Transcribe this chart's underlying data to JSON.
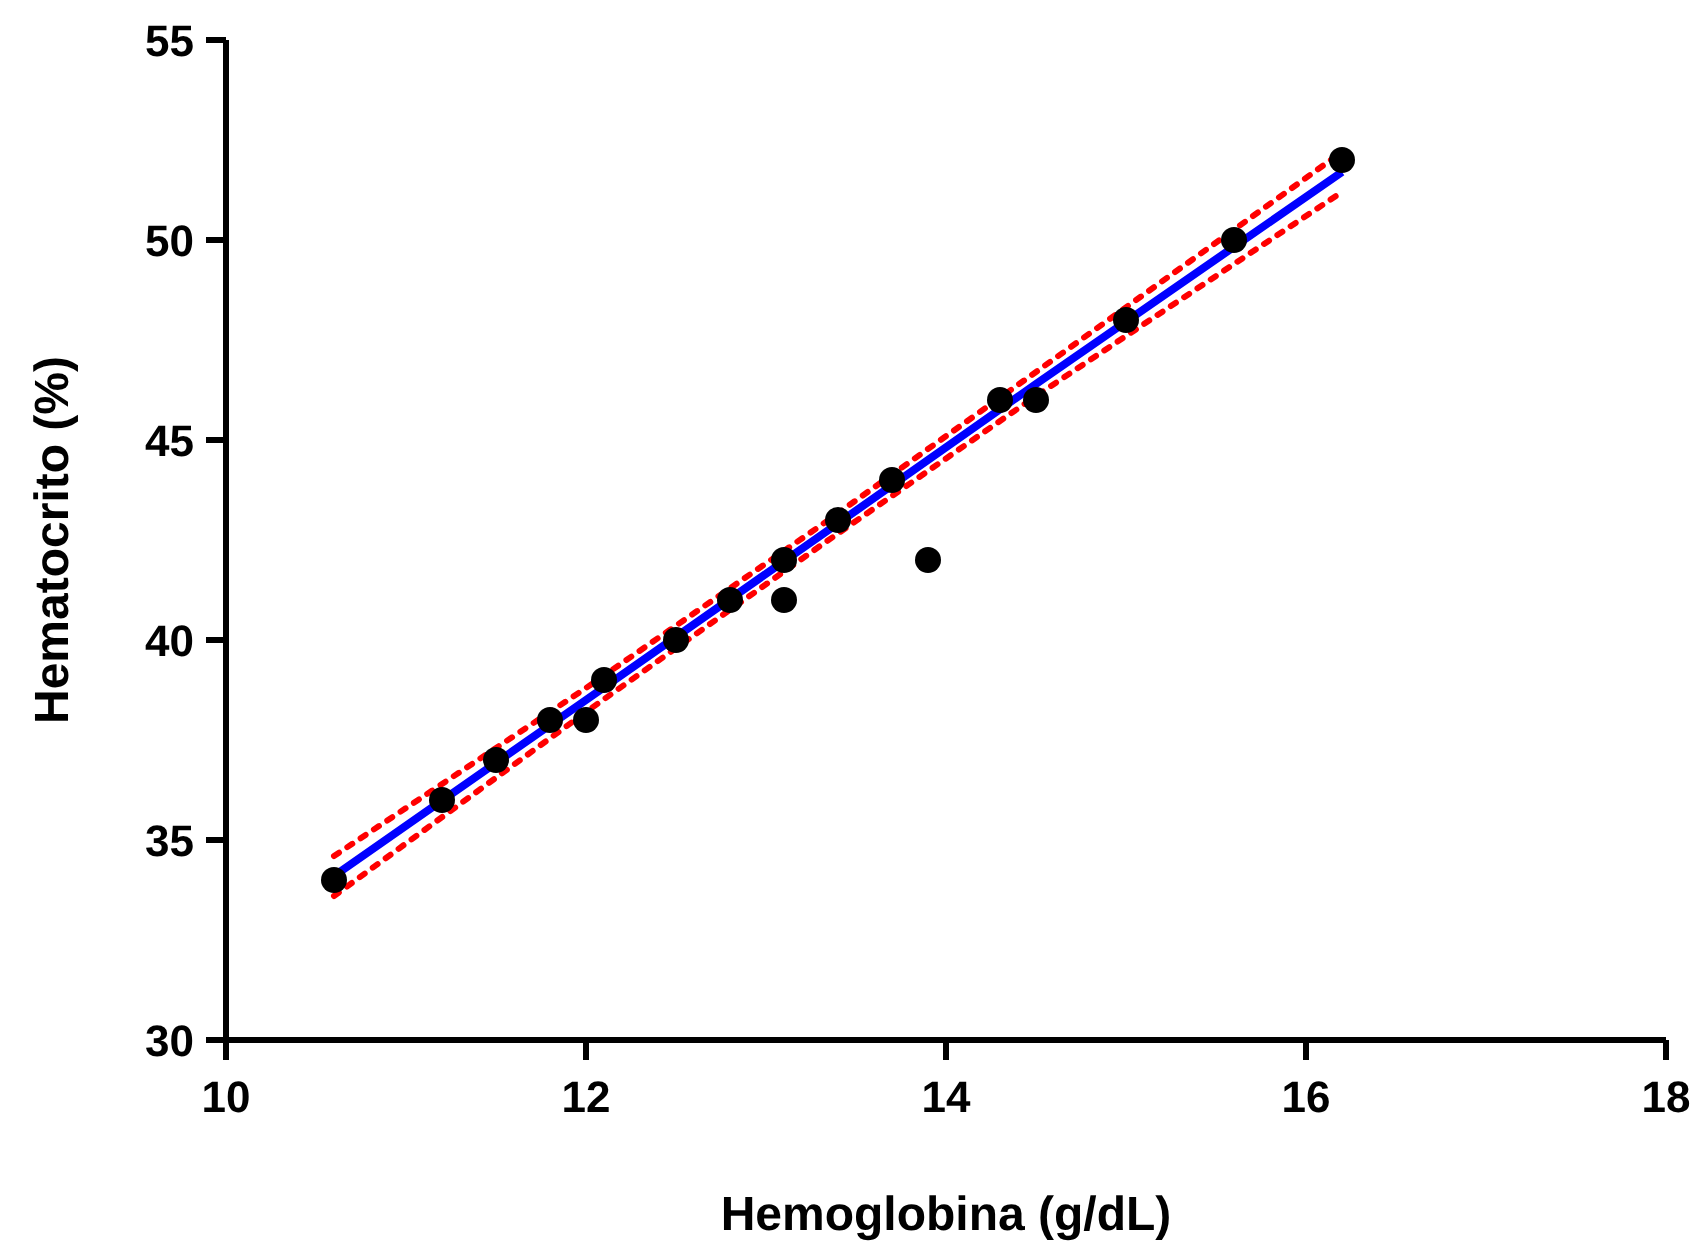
{
  "chart_data": {
    "type": "scatter",
    "xlabel": "Hemoglobina (g/dL)",
    "ylabel": "Hematocrito (%)",
    "xlim": [
      10,
      18
    ],
    "ylim": [
      30,
      55
    ],
    "xticks": [
      10,
      12,
      14,
      16,
      18
    ],
    "yticks": [
      30,
      35,
      40,
      45,
      50,
      55
    ],
    "grid": false,
    "marker": "circle",
    "x": [
      10.6,
      11.2,
      11.5,
      11.8,
      12.0,
      12.1,
      12.5,
      12.8,
      13.1,
      13.1,
      13.4,
      13.7,
      13.9,
      14.3,
      14.5,
      15.0,
      15.6,
      16.2
    ],
    "series": [
      {
        "color": "#000000",
        "values": [
          34,
          36,
          37,
          38,
          38,
          39,
          40,
          41,
          41,
          42,
          43,
          44,
          42,
          46,
          46,
          48,
          50,
          52
        ]
      },
      {
        "type": "line",
        "color": "#0000ff",
        "line_style": "solid",
        "marker": "none",
        "x": [
          10.6,
          12.0,
          13.3,
          14.5,
          16.2
        ],
        "values": [
          34.1,
          38.5,
          42.6,
          46.4,
          51.7
        ]
      },
      {
        "type": "line",
        "color": "#ff0000",
        "line_style": "dotted",
        "marker": "none",
        "x": [
          10.6,
          12.0,
          13.3,
          14.5,
          16.2
        ],
        "values": [
          34.6,
          38.8,
          42.85,
          46.7,
          52.2
        ]
      },
      {
        "type": "line",
        "color": "#ff0000",
        "line_style": "dotted",
        "marker": "none",
        "x": [
          10.6,
          12.0,
          13.3,
          14.5,
          16.2
        ],
        "values": [
          33.6,
          38.2,
          42.35,
          46.1,
          51.2
        ]
      }
    ]
  }
}
